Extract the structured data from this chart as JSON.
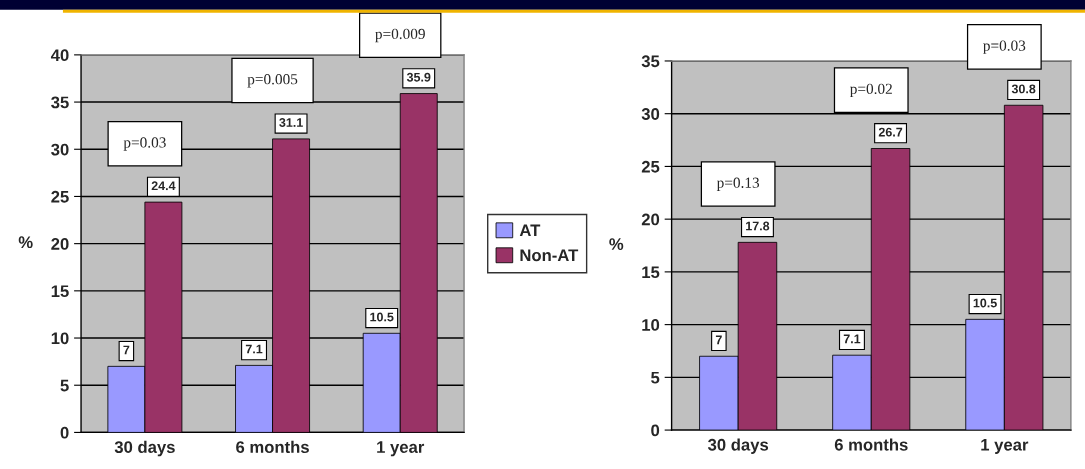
{
  "chart_data": [
    {
      "type": "bar",
      "ylabel": "%",
      "categories": [
        "30 days",
        "6 months",
        "1 year"
      ],
      "series": [
        {
          "name": "AT",
          "color": "#9999ff",
          "values": [
            7,
            7.1,
            10.5
          ]
        },
        {
          "name": "Non-AT",
          "color": "#993366",
          "values": [
            24.4,
            31.1,
            35.9
          ]
        }
      ],
      "ylim": [
        0,
        40
      ],
      "yticks": [
        0,
        5,
        10,
        15,
        20,
        25,
        30,
        35,
        40
      ],
      "grid": "y",
      "legend": "right",
      "data_labels": true,
      "annotations": [
        "p=0.03",
        "p=0.005",
        "p=0.009"
      ]
    },
    {
      "type": "bar",
      "ylabel": "%",
      "categories": [
        "30 days",
        "6 months",
        "1 year"
      ],
      "series": [
        {
          "color": "#9999ff",
          "values": [
            7,
            7.1,
            10.5
          ]
        },
        {
          "color": "#993366",
          "values": [
            17.8,
            26.7,
            30.8
          ]
        }
      ],
      "ylim": [
        0,
        35
      ],
      "yticks": [
        0,
        5,
        10,
        15,
        20,
        25,
        30,
        35
      ],
      "grid": "y",
      "data_labels": true,
      "annotations": [
        "p=0.13",
        "p=0.02",
        "p=0.03"
      ]
    }
  ]
}
